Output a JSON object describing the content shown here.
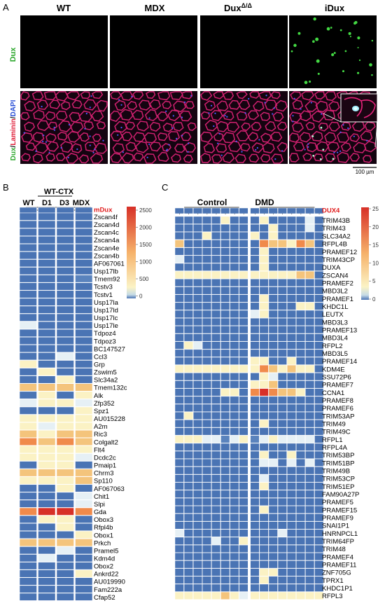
{
  "panel_a": {
    "letter": "A",
    "columns": [
      {
        "label": "WT",
        "sup": ""
      },
      {
        "label": "MDX",
        "sup": ""
      },
      {
        "label": "Dux",
        "sup": "Δ/Δ"
      },
      {
        "label": "iDux",
        "sup": ""
      }
    ],
    "row_labels": {
      "top": "Dux",
      "bottom": [
        {
          "text": "Dux",
          "color": "#2ea82e"
        },
        {
          "text": "/",
          "color": "#000000"
        },
        {
          "text": "Laminin",
          "color": "#e0203a"
        },
        {
          "text": "/",
          "color": "#000000"
        },
        {
          "text": "DAPI",
          "color": "#2a4fd6"
        }
      ]
    },
    "scale_bar": "100 µm",
    "colors": {
      "dux_green": "#2ea82e",
      "laminin_red": "#e0203a",
      "dapi_blue": "#2a4fd6"
    }
  },
  "panel_b": {
    "letter": "B",
    "group_label": "WT-CTX",
    "column_labels": [
      "WT",
      "D1",
      "D3",
      "MDX"
    ],
    "highlight_gene": "mDux",
    "colorbar_ticks": [
      "2500",
      "2000",
      "1500",
      "1000",
      "500",
      "0"
    ],
    "genes": [
      "Zscan4f",
      "Zscan4d",
      "Zscan4c",
      "Zscan4a",
      "Zscan4e",
      "Zscan4b",
      "AF067061",
      "Usp17lb",
      "Tmem92",
      "Tcstv3",
      "Tcstv1",
      "Usp17la",
      "Usp17ld",
      "Usp17lc",
      "Usp17le",
      "Tdpoz4",
      "Tdpoz3",
      "BC147527",
      "Ccl3",
      "Grp",
      "Zswim5",
      "Slc34a2",
      "Tmem132c",
      "Alk",
      "Zfp352",
      "Spz1",
      "AU015228",
      "A2m",
      "Ric3",
      "Colgalt2",
      "Flt4",
      "Dcdc2c",
      "Pmaip1",
      "Chrm3",
      "Sp110",
      "AF067063",
      "Chit1",
      "Slpi",
      "Gda",
      "Obox3",
      "Rfpl4b",
      "Obox1",
      "Prkch",
      "Pramel5",
      "Kdm4d",
      "Obox2",
      "Ankrd22",
      "AU019990",
      "Fam222a",
      "Cfap52"
    ]
  },
  "panel_c": {
    "letter": "C",
    "control_label": "Control",
    "dmd_label": "DMD",
    "highlight_gene": "DUX4",
    "colorbar_ticks": [
      "25",
      "20",
      "15",
      "10",
      "5",
      "0"
    ],
    "genes": [
      "TRIM43B",
      "TRIM43",
      "SLC34A2",
      "RFPL4B",
      "PRAMEF12",
      "TRIM43CP",
      "DUXA",
      "ZSCAN4",
      "PRAMEF2",
      "MBD3L2",
      "PRAMEF1",
      "KHDC1L",
      "LEUTX",
      "MBD3L3",
      "PRAMEF13",
      "MBD3L4",
      "RFPL2",
      "MBD3L5",
      "PRAMEF14",
      "KDM4E",
      "SSU72P6",
      "PRAMEF7",
      "CCNA1",
      "PRAMEF8",
      "PRAMEF6",
      "TRIM53AP",
      "TRIM49",
      "TRIM49C",
      "RFPL1",
      "RFPL4A",
      "TRIM53BP",
      "TRIM51BP",
      "TRIM49B",
      "TRIM53CP",
      "TRIM51EP",
      "FAM90A27P",
      "PRAMEF5",
      "PRAMEF15",
      "PRAMEF9",
      "SNAI1P1",
      "HNRNPCL1",
      "TRIM64FP",
      "TRIM48",
      "PRAMEF4",
      "PRAMEF11",
      "ZNF705G",
      "TPRX1",
      "KHDC1P1",
      "RFPL3"
    ]
  },
  "heatmap_colors": {
    "low": "#4a74b4",
    "pale": "#e6f0f5",
    "mid": "#f4c47c",
    "high": "#d73027",
    "highlight_text": "#e02020"
  }
}
